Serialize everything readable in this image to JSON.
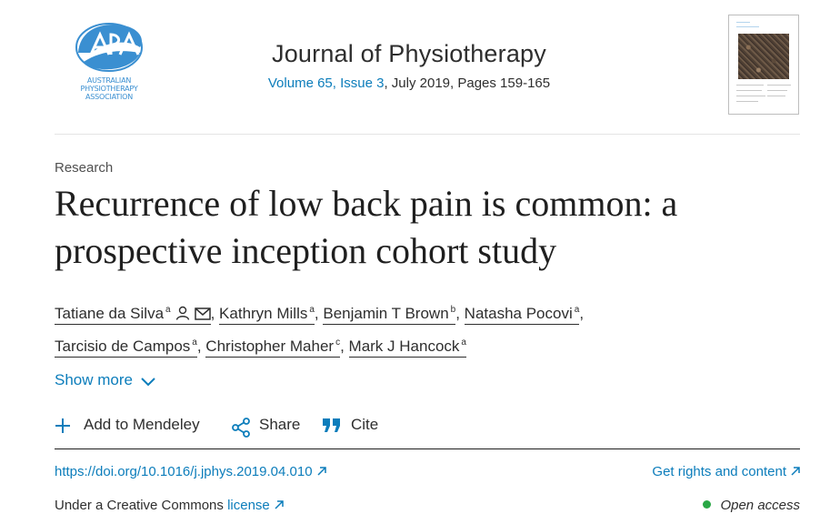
{
  "header": {
    "publisher_logo": {
      "lines": [
        "AUSTRALIAN",
        "PHYSIOTHERAPY",
        "ASSOCIATION"
      ],
      "icon": "apa-logo-icon",
      "color": "#3a8fd1"
    },
    "journal_title": "Journal of Physiotherapy",
    "issue_link": "Volume 65, Issue 3",
    "issue_rest": ", July 2019, Pages 159-165",
    "cover": {
      "icon": "journal-cover-thumbnail"
    }
  },
  "article": {
    "type": "Research",
    "title": "Recurrence of low back pain is common: a prospective inception cohort study"
  },
  "authors": [
    {
      "name": "Tatiane da Silva",
      "aff": "a",
      "icons": [
        "person-icon",
        "envelope-icon"
      ]
    },
    {
      "name": "Kathryn Mills",
      "aff": "a"
    },
    {
      "name": "Benjamin T Brown",
      "aff": "b"
    },
    {
      "name": "Natasha Pocovi",
      "aff": "a"
    },
    {
      "name": "Tarcisio de Campos",
      "aff": "a"
    },
    {
      "name": "Christopher Maher",
      "aff": "c"
    },
    {
      "name": "Mark J Hancock",
      "aff": "a"
    }
  ],
  "show_more": {
    "label": "Show more",
    "icon": "chevron-down-icon"
  },
  "tools": {
    "mendeley": {
      "label": "Add to Mendeley",
      "icon": "plus-icon"
    },
    "share": {
      "label": "Share",
      "icon": "share-icon"
    },
    "cite": {
      "label": "Cite",
      "icon": "quote-icon"
    }
  },
  "links": {
    "doi": "https://doi.org/10.1016/j.jphys.2019.04.010",
    "rights": "Get rights and content",
    "license_prefix": "Under a Creative Commons ",
    "license_link": "license",
    "open_access": "Open access",
    "arrow_icon": "external-arrow-icon"
  },
  "colors": {
    "link": "#0c7dbb",
    "text": "#2e2e2e",
    "open_access_dot": "#29a745"
  }
}
